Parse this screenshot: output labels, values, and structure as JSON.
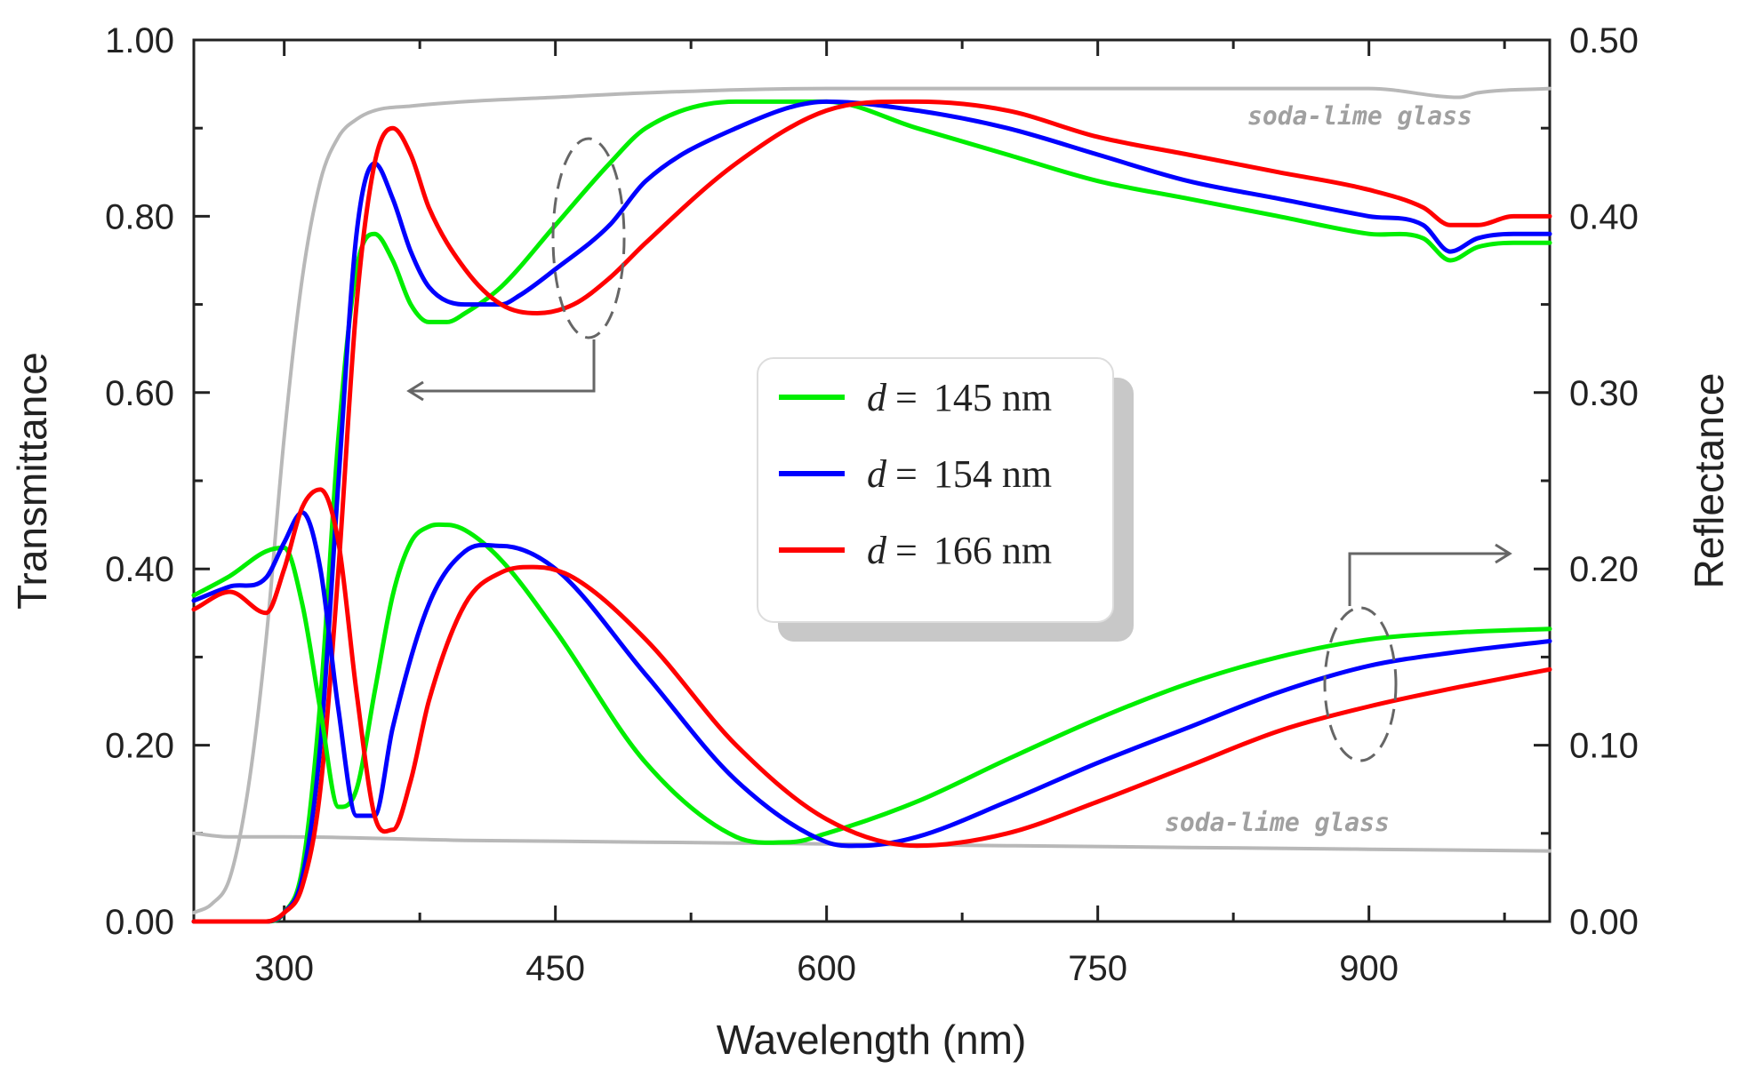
{
  "chart_data": {
    "type": "line",
    "xlabel": "Wavelength (nm)",
    "ylabel_left": "Transmittance",
    "ylabel_right": "Reflectance",
    "xlim": [
      250,
      1000
    ],
    "ylim_left": [
      0.0,
      1.0
    ],
    "ylim_right": [
      0.0,
      0.5
    ],
    "x_ticks": [
      "300",
      "450",
      "600",
      "750",
      "900"
    ],
    "x_tick_values": [
      300,
      450,
      600,
      750,
      900
    ],
    "y_ticks_left": [
      "0.00",
      "0.20",
      "0.40",
      "0.60",
      "0.80",
      "1.00"
    ],
    "y_ticks_left_values": [
      0.0,
      0.2,
      0.4,
      0.6,
      0.8,
      1.0
    ],
    "y_ticks_right": [
      "0.00",
      "0.10",
      "0.20",
      "0.30",
      "0.40",
      "0.50"
    ],
    "y_ticks_right_values": [
      0.0,
      0.1,
      0.2,
      0.3,
      0.4,
      0.5
    ],
    "annotations": [
      "soda-lime glass",
      "soda-lime glass"
    ],
    "legend": {
      "position": "center",
      "entries": [
        {
          "var": "d",
          "eq": "=",
          "value": "145 nm",
          "color": "#00ee00"
        },
        {
          "var": "d",
          "eq": "=",
          "value": "154 nm",
          "color": "#0000ff"
        },
        {
          "var": "d",
          "eq": "=",
          "value": "166 nm",
          "color": "#ff0000"
        }
      ]
    },
    "series": [
      {
        "name": "glass transmittance",
        "axis": "left",
        "color": "#b8b8b8",
        "x": [
          250,
          260,
          270,
          280,
          290,
          300,
          310,
          320,
          330,
          340,
          350,
          370,
          400,
          450,
          500,
          600,
          700,
          800,
          900,
          950,
          960,
          1000
        ],
        "y": [
          0.01,
          0.02,
          0.05,
          0.15,
          0.32,
          0.55,
          0.73,
          0.84,
          0.89,
          0.91,
          0.92,
          0.925,
          0.93,
          0.935,
          0.94,
          0.945,
          0.945,
          0.945,
          0.945,
          0.935,
          0.94,
          0.945
        ]
      },
      {
        "name": "glass reflectance",
        "axis": "right",
        "color": "#b8b8b8",
        "x": [
          250,
          270,
          300,
          400,
          500,
          600,
          700,
          800,
          900,
          1000
        ],
        "y": [
          0.05,
          0.048,
          0.048,
          0.046,
          0.045,
          0.044,
          0.043,
          0.042,
          0.041,
          0.04
        ]
      },
      {
        "name": "T 145 nm",
        "axis": "left",
        "color": "#00ee00",
        "x": [
          250,
          270,
          290,
          300,
          310,
          320,
          330,
          340,
          350,
          360,
          370,
          380,
          390,
          400,
          420,
          450,
          480,
          500,
          550,
          600,
          650,
          700,
          750,
          800,
          850,
          900,
          930,
          945,
          960,
          980,
          1000
        ],
        "y": [
          0.0,
          0.0,
          0.0,
          0.01,
          0.06,
          0.25,
          0.55,
          0.74,
          0.78,
          0.75,
          0.7,
          0.68,
          0.68,
          0.69,
          0.72,
          0.79,
          0.86,
          0.9,
          0.93,
          0.93,
          0.9,
          0.87,
          0.84,
          0.82,
          0.8,
          0.78,
          0.775,
          0.75,
          0.765,
          0.77,
          0.77
        ]
      },
      {
        "name": "T 154 nm",
        "axis": "left",
        "color": "#0000ff",
        "x": [
          250,
          270,
          290,
          300,
          310,
          320,
          330,
          340,
          350,
          360,
          370,
          380,
          400,
          420,
          430,
          450,
          480,
          500,
          550,
          600,
          650,
          700,
          750,
          800,
          850,
          900,
          930,
          945,
          960,
          980,
          1000
        ],
        "y": [
          0.0,
          0.0,
          0.0,
          0.01,
          0.05,
          0.2,
          0.5,
          0.78,
          0.86,
          0.82,
          0.76,
          0.72,
          0.7,
          0.7,
          0.71,
          0.74,
          0.79,
          0.84,
          0.9,
          0.93,
          0.92,
          0.9,
          0.87,
          0.84,
          0.82,
          0.8,
          0.79,
          0.76,
          0.775,
          0.78,
          0.78
        ]
      },
      {
        "name": "T 166 nm",
        "axis": "left",
        "color": "#ff0000",
        "x": [
          250,
          270,
          290,
          300,
          310,
          320,
          330,
          340,
          350,
          360,
          370,
          380,
          400,
          420,
          440,
          460,
          480,
          500,
          550,
          600,
          650,
          700,
          750,
          800,
          850,
          900,
          930,
          945,
          960,
          980,
          1000
        ],
        "y": [
          0.0,
          0.0,
          0.0,
          0.01,
          0.04,
          0.15,
          0.4,
          0.7,
          0.86,
          0.9,
          0.87,
          0.81,
          0.74,
          0.7,
          0.69,
          0.7,
          0.73,
          0.77,
          0.86,
          0.92,
          0.93,
          0.92,
          0.89,
          0.87,
          0.85,
          0.83,
          0.81,
          0.79,
          0.79,
          0.8,
          0.8
        ]
      },
      {
        "name": "R 145 nm",
        "axis": "right",
        "color": "#00ee00",
        "x": [
          250,
          270,
          290,
          300,
          310,
          320,
          330,
          340,
          350,
          360,
          370,
          380,
          390,
          400,
          420,
          450,
          500,
          550,
          580,
          600,
          650,
          700,
          750,
          800,
          850,
          900,
          950,
          1000
        ],
        "y": [
          0.185,
          0.196,
          0.21,
          0.212,
          0.18,
          0.12,
          0.065,
          0.075,
          0.13,
          0.185,
          0.215,
          0.224,
          0.225,
          0.222,
          0.205,
          0.165,
          0.09,
          0.048,
          0.045,
          0.05,
          0.068,
          0.092,
          0.115,
          0.135,
          0.15,
          0.16,
          0.164,
          0.166
        ]
      },
      {
        "name": "R 154 nm",
        "axis": "right",
        "color": "#0000ff",
        "x": [
          250,
          270,
          290,
          300,
          310,
          320,
          330,
          340,
          350,
          360,
          380,
          400,
          420,
          450,
          500,
          550,
          600,
          620,
          650,
          700,
          750,
          800,
          850,
          900,
          950,
          1000
        ],
        "y": [
          0.182,
          0.19,
          0.195,
          0.215,
          0.232,
          0.2,
          0.12,
          0.06,
          0.06,
          0.11,
          0.18,
          0.21,
          0.213,
          0.2,
          0.14,
          0.08,
          0.045,
          0.043,
          0.048,
          0.068,
          0.09,
          0.11,
          0.13,
          0.145,
          0.153,
          0.159
        ]
      },
      {
        "name": "R 166 nm",
        "axis": "right",
        "color": "#ff0000",
        "x": [
          250,
          270,
          290,
          300,
          310,
          320,
          330,
          340,
          350,
          360,
          370,
          380,
          400,
          420,
          440,
          460,
          500,
          550,
          600,
          650,
          700,
          750,
          800,
          850,
          900,
          950,
          1000
        ],
        "y": [
          0.177,
          0.187,
          0.175,
          0.2,
          0.235,
          0.245,
          0.215,
          0.13,
          0.06,
          0.052,
          0.08,
          0.125,
          0.18,
          0.198,
          0.201,
          0.195,
          0.16,
          0.1,
          0.058,
          0.043,
          0.05,
          0.068,
          0.088,
          0.108,
          0.122,
          0.133,
          0.143
        ]
      }
    ]
  }
}
